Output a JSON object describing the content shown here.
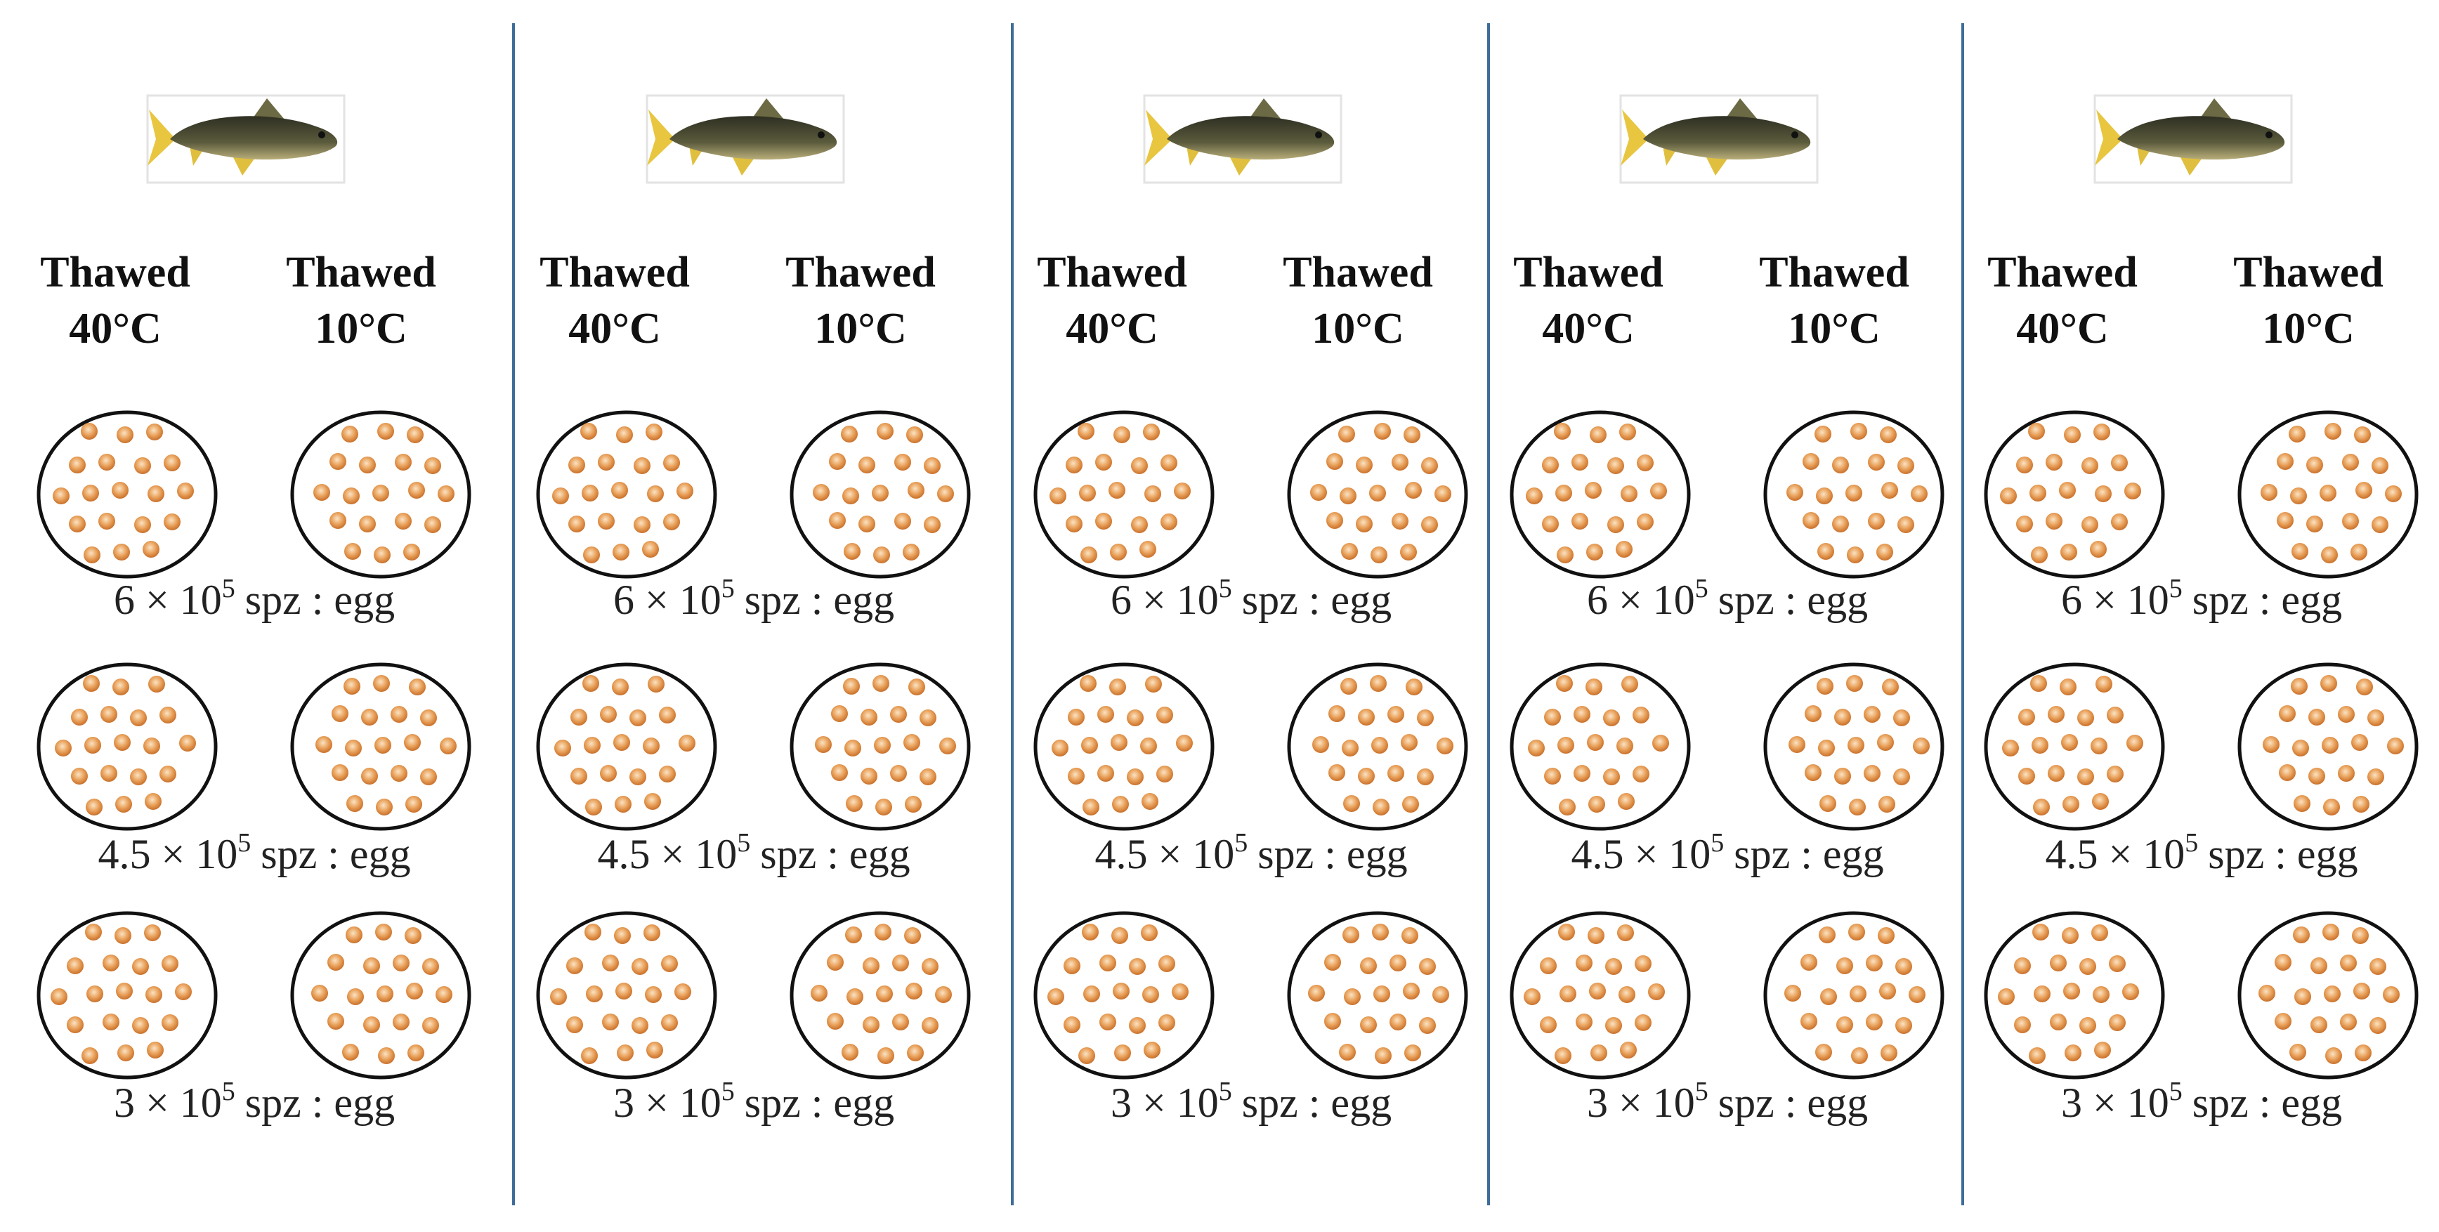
{
  "panels": [
    {
      "columns": [
        [
          "Thawed",
          "40°C"
        ],
        [
          "Thawed",
          "10°C"
        ]
      ],
      "rows": [
        {
          "mantissa": "6 × 10",
          "exponent": "5",
          "ratio": "spz : egg"
        },
        {
          "mantissa": "4.5 × 10",
          "exponent": "5",
          "ratio": "spz : egg"
        },
        {
          "mantissa": "3 × 10",
          "exponent": "5",
          "ratio": "spz : egg"
        }
      ]
    },
    {
      "columns": [
        [
          "Thawed",
          "40°C"
        ],
        [
          "Thawed",
          "10°C"
        ]
      ],
      "rows": [
        {
          "mantissa": "6 × 10",
          "exponent": "5",
          "ratio": "spz : egg"
        },
        {
          "mantissa": "4.5 × 10",
          "exponent": "5",
          "ratio": "spz : egg"
        },
        {
          "mantissa": "3 × 10",
          "exponent": "5",
          "ratio": "spz : egg"
        }
      ]
    },
    {
      "columns": [
        [
          "Thawed",
          "40°C"
        ],
        [
          "Thawed",
          "10°C"
        ]
      ],
      "rows": [
        {
          "mantissa": "6 × 10",
          "exponent": "5",
          "ratio": "spz : egg"
        },
        {
          "mantissa": "4.5 × 10",
          "exponent": "5",
          "ratio": "spz : egg"
        },
        {
          "mantissa": "3 × 10",
          "exponent": "5",
          "ratio": "spz : egg"
        }
      ]
    },
    {
      "columns": [
        [
          "Thawed",
          "40°C"
        ],
        [
          "Thawed",
          "10°C"
        ]
      ],
      "rows": [
        {
          "mantissa": "6 × 10",
          "exponent": "5",
          "ratio": "spz : egg"
        },
        {
          "mantissa": "4.5 × 10",
          "exponent": "5",
          "ratio": "spz : egg"
        },
        {
          "mantissa": "3 × 10",
          "exponent": "5",
          "ratio": "spz : egg"
        }
      ]
    },
    {
      "columns": [
        [
          "Thawed",
          "40°C"
        ],
        [
          "Thawed",
          "10°C"
        ]
      ],
      "rows": [
        {
          "mantissa": "6 × 10",
          "exponent": "5",
          "ratio": "spz : egg"
        },
        {
          "mantissa": "4.5 × 10",
          "exponent": "5",
          "ratio": "spz : egg"
        },
        {
          "mantissa": "3 × 10",
          "exponent": "5",
          "ratio": "spz : egg"
        }
      ]
    }
  ]
}
